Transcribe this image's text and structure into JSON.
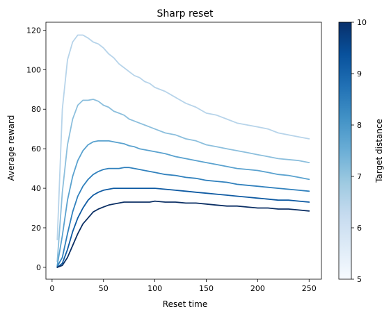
{
  "chart_data": {
    "type": "line",
    "title": "Sharp reset",
    "xlabel": "Reset time",
    "ylabel": "Average reward",
    "xlim": [
      -6,
      262
    ],
    "ylim": [
      -6,
      124
    ],
    "xticks": [
      0,
      50,
      100,
      150,
      200,
      250
    ],
    "yticks": [
      0,
      20,
      40,
      60,
      80,
      100,
      120
    ],
    "grid": false,
    "legend": "none",
    "colorbar": {
      "label": "Target distance",
      "range": [
        5,
        10
      ],
      "ticks": [
        5,
        6,
        7,
        8,
        9,
        10
      ],
      "colormap": "Blues",
      "colors": [
        "#f7fbff",
        "#deebf7",
        "#c6dbef",
        "#9ecae1",
        "#6baed6",
        "#4292c6",
        "#2171b5",
        "#08519c",
        "#08306b"
      ]
    },
    "x": [
      5,
      10,
      15,
      20,
      25,
      30,
      35,
      40,
      45,
      50,
      55,
      60,
      65,
      70,
      75,
      80,
      85,
      90,
      95,
      100,
      110,
      120,
      130,
      140,
      150,
      160,
      170,
      180,
      190,
      200,
      210,
      220,
      230,
      240,
      250
    ],
    "series": [
      {
        "target_distance": 5,
        "color": "#b7d4ea",
        "values": [
          14,
          80,
          105,
          114,
          117.5,
          117.5,
          116,
          114,
          113,
          111,
          108,
          106,
          103,
          101,
          99,
          97,
          96,
          94,
          93,
          91,
          89,
          86,
          83,
          81,
          78,
          77,
          75,
          73,
          72,
          71,
          70,
          68,
          67,
          66,
          65
        ]
      },
      {
        "target_distance": 6,
        "color": "#8cbfdd",
        "values": [
          3,
          38,
          62,
          75,
          82,
          84.5,
          84.5,
          85,
          84,
          82,
          81,
          79,
          78,
          77,
          75,
          74,
          73,
          72,
          71,
          70,
          68,
          67,
          65,
          64,
          62,
          61,
          60,
          59,
          58,
          57,
          56,
          55,
          54.5,
          54,
          53
        ]
      },
      {
        "target_distance": 7,
        "color": "#5aa2cf",
        "values": [
          1,
          16,
          34,
          46,
          54,
          59,
          62,
          63.5,
          64,
          64,
          64,
          63.5,
          63,
          62.5,
          61.5,
          61,
          60,
          59.5,
          59,
          58.5,
          57.5,
          56,
          55,
          54,
          53,
          52,
          51,
          50,
          49.5,
          49,
          48,
          47,
          46.5,
          45.5,
          44.5
        ]
      },
      {
        "target_distance": 8,
        "color": "#3181bd",
        "values": [
          0.5,
          5,
          17,
          28,
          36,
          41,
          44.5,
          47,
          48.5,
          49.5,
          50,
          50,
          50,
          50.5,
          50.5,
          50,
          49.5,
          49,
          48.5,
          48,
          47,
          46.5,
          45.5,
          45,
          44,
          43.5,
          43,
          42,
          41.5,
          41,
          40.5,
          40,
          39.5,
          39,
          38.5
        ]
      },
      {
        "target_distance": 9,
        "color": "#0f5ba3",
        "values": [
          0,
          2,
          9,
          18,
          25,
          30,
          34,
          36.5,
          38,
          39,
          39.5,
          40,
          40,
          40,
          40,
          40,
          40,
          40,
          40,
          40,
          39.5,
          39,
          38.5,
          38,
          37.5,
          37,
          36.5,
          36,
          35.5,
          35,
          34.5,
          34,
          34,
          33.5,
          33
        ]
      },
      {
        "target_distance": 10,
        "color": "#0b2f64",
        "values": [
          0,
          1,
          5,
          11,
          17,
          22,
          25,
          28,
          29.5,
          30.5,
          31.5,
          32,
          32.5,
          33,
          33,
          33,
          33,
          33,
          33,
          33.5,
          33,
          33,
          32.5,
          32.5,
          32,
          31.5,
          31,
          31,
          30.5,
          30,
          30,
          29.5,
          29.5,
          29,
          28.5
        ]
      }
    ]
  }
}
